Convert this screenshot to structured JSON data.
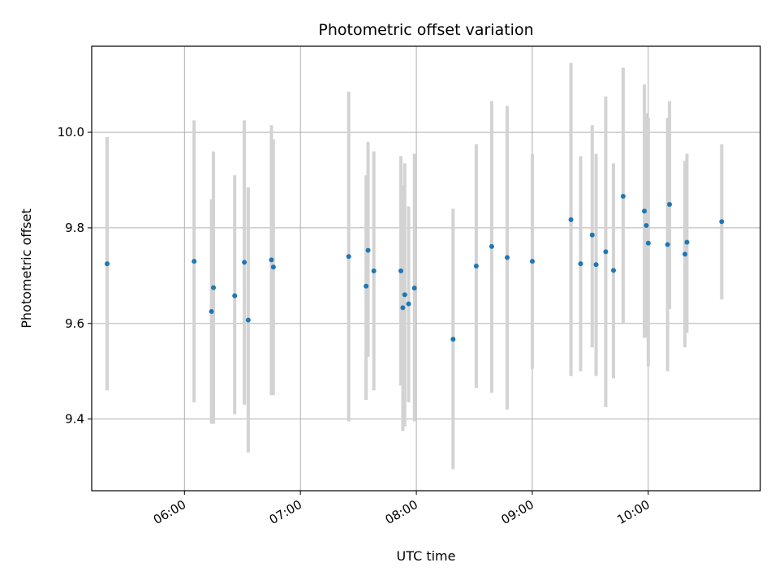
{
  "chart_data": {
    "type": "scatter",
    "title": "Photometric offset variation",
    "xlabel": "UTC time",
    "ylabel": "Photometric offset",
    "x_unit": "UTC time (HH:MM)",
    "xlim": [
      "05:12",
      "10:58"
    ],
    "ylim": [
      9.25,
      10.18
    ],
    "x_ticks": [
      "06:00",
      "07:00",
      "08:00",
      "09:00",
      "10:00"
    ],
    "y_ticks": [
      9.4,
      9.6,
      9.8,
      10.0
    ],
    "y_tick_labels": [
      "9.4",
      "9.6",
      "9.8",
      "10.0"
    ],
    "grid": true,
    "marker_color": "#1f77b4",
    "errorbar_color": "#d3d3d3",
    "points": [
      {
        "x": "05:20",
        "y": 9.725,
        "yerr_low": 9.46,
        "yerr_high": 9.99
      },
      {
        "x": "06:05",
        "y": 9.73,
        "yerr_low": 9.435,
        "yerr_high": 10.025
      },
      {
        "x": "06:14",
        "y": 9.625,
        "yerr_low": 9.39,
        "yerr_high": 9.86
      },
      {
        "x": "06:15",
        "y": 9.675,
        "yerr_low": 9.39,
        "yerr_high": 9.96
      },
      {
        "x": "06:26",
        "y": 9.658,
        "yerr_low": 9.41,
        "yerr_high": 9.91
      },
      {
        "x": "06:31",
        "y": 9.728,
        "yerr_low": 9.43,
        "yerr_high": 10.025
      },
      {
        "x": "06:33",
        "y": 9.607,
        "yerr_low": 9.33,
        "yerr_high": 9.885
      },
      {
        "x": "06:45",
        "y": 9.733,
        "yerr_low": 9.45,
        "yerr_high": 10.015
      },
      {
        "x": "06:46",
        "y": 9.718,
        "yerr_low": 9.45,
        "yerr_high": 9.985
      },
      {
        "x": "07:25",
        "y": 9.74,
        "yerr_low": 9.395,
        "yerr_high": 10.085
      },
      {
        "x": "07:34",
        "y": 9.678,
        "yerr_low": 9.44,
        "yerr_high": 9.91
      },
      {
        "x": "07:35",
        "y": 9.753,
        "yerr_low": 9.53,
        "yerr_high": 9.98
      },
      {
        "x": "07:38",
        "y": 9.71,
        "yerr_low": 9.46,
        "yerr_high": 9.96
      },
      {
        "x": "07:52",
        "y": 9.71,
        "yerr_low": 9.47,
        "yerr_high": 9.95
      },
      {
        "x": "07:53",
        "y": 9.633,
        "yerr_low": 9.375,
        "yerr_high": 9.89
      },
      {
        "x": "07:54",
        "y": 9.66,
        "yerr_low": 9.385,
        "yerr_high": 9.935
      },
      {
        "x": "07:56",
        "y": 9.641,
        "yerr_low": 9.435,
        "yerr_high": 9.845
      },
      {
        "x": "07:59",
        "y": 9.674,
        "yerr_low": 9.395,
        "yerr_high": 9.955
      },
      {
        "x": "08:19",
        "y": 9.567,
        "yerr_low": 9.295,
        "yerr_high": 9.84
      },
      {
        "x": "08:31",
        "y": 9.72,
        "yerr_low": 9.465,
        "yerr_high": 9.975
      },
      {
        "x": "08:39",
        "y": 9.761,
        "yerr_low": 9.455,
        "yerr_high": 10.065
      },
      {
        "x": "08:47",
        "y": 9.738,
        "yerr_low": 9.42,
        "yerr_high": 10.055
      },
      {
        "x": "09:00",
        "y": 9.73,
        "yerr_low": 9.505,
        "yerr_high": 9.955
      },
      {
        "x": "09:20",
        "y": 9.817,
        "yerr_low": 9.49,
        "yerr_high": 10.145
      },
      {
        "x": "09:25",
        "y": 9.725,
        "yerr_low": 9.5,
        "yerr_high": 9.95
      },
      {
        "x": "09:31",
        "y": 9.785,
        "yerr_low": 9.55,
        "yerr_high": 10.015
      },
      {
        "x": "09:33",
        "y": 9.723,
        "yerr_low": 9.49,
        "yerr_high": 9.955
      },
      {
        "x": "09:38",
        "y": 9.75,
        "yerr_low": 9.425,
        "yerr_high": 10.075
      },
      {
        "x": "09:42",
        "y": 9.711,
        "yerr_low": 9.485,
        "yerr_high": 9.935
      },
      {
        "x": "09:47",
        "y": 9.866,
        "yerr_low": 9.6,
        "yerr_high": 10.135
      },
      {
        "x": "09:58",
        "y": 9.835,
        "yerr_low": 9.57,
        "yerr_high": 10.1
      },
      {
        "x": "09:59",
        "y": 9.805,
        "yerr_low": 9.57,
        "yerr_high": 10.04
      },
      {
        "x": "10:00",
        "y": 9.768,
        "yerr_low": 9.51,
        "yerr_high": 10.03
      },
      {
        "x": "10:10",
        "y": 9.765,
        "yerr_low": 9.5,
        "yerr_high": 10.03
      },
      {
        "x": "10:11",
        "y": 9.849,
        "yerr_low": 9.63,
        "yerr_high": 10.065
      },
      {
        "x": "10:19",
        "y": 9.745,
        "yerr_low": 9.55,
        "yerr_high": 9.94
      },
      {
        "x": "10:20",
        "y": 9.77,
        "yerr_low": 9.58,
        "yerr_high": 9.955
      },
      {
        "x": "10:38",
        "y": 9.813,
        "yerr_low": 9.65,
        "yerr_high": 9.975
      }
    ]
  }
}
